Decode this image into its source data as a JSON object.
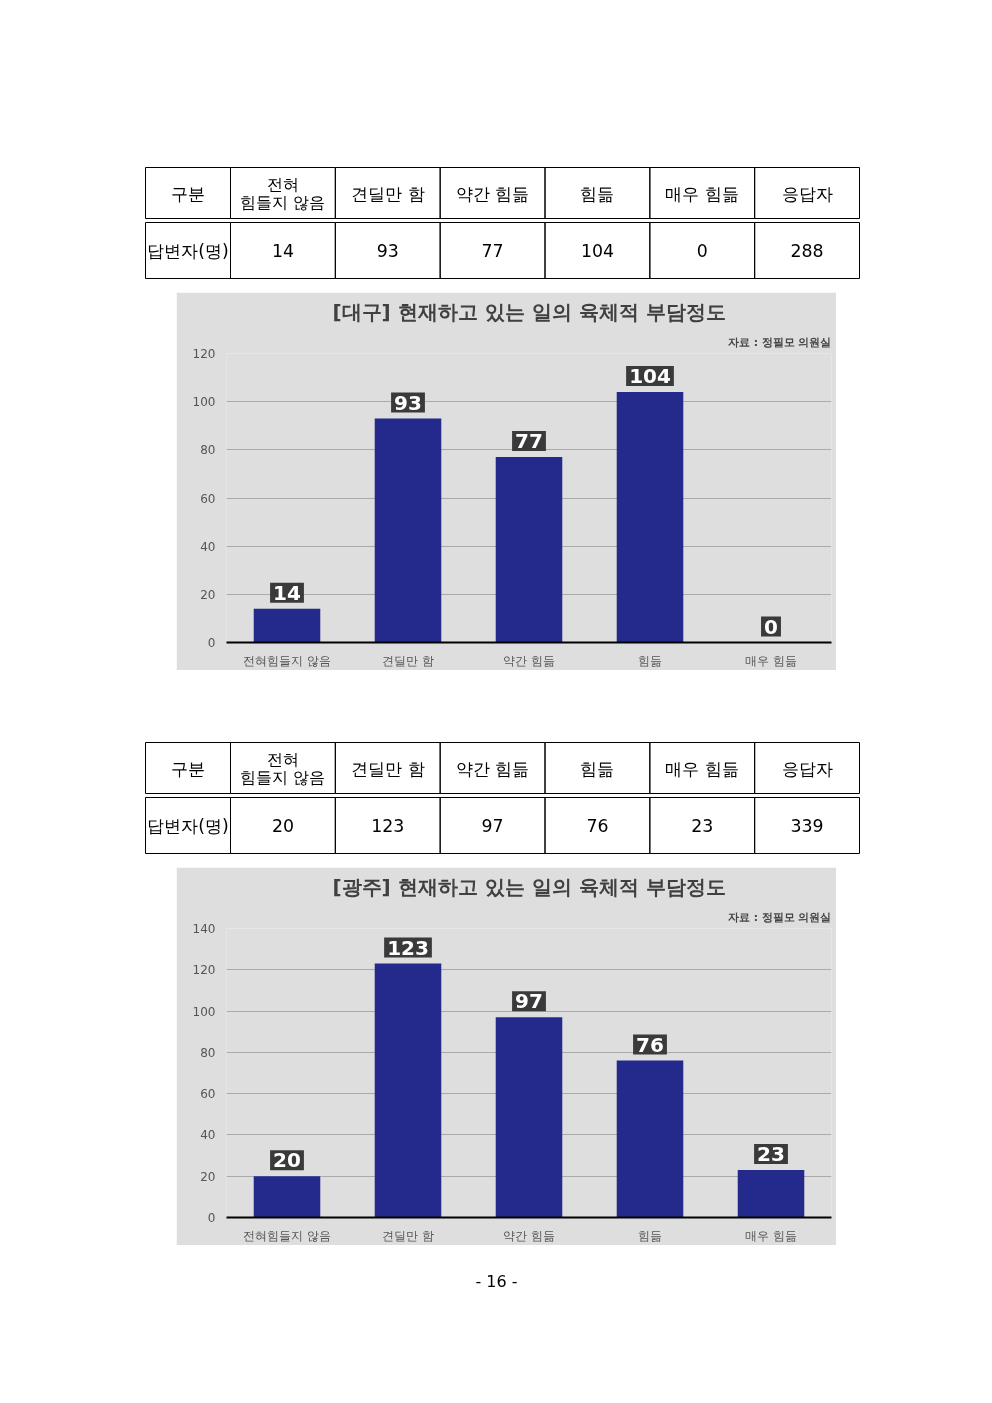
{
  "chart_data": [
    {
      "type": "other",
      "categories": [
        "전혀 힘들지 않음",
        "견딜만 함",
        "약간 힘듦",
        "힘듦",
        "매우 힘듦",
        "응답자"
      ],
      "values": [
        14,
        93,
        77,
        104,
        0,
        288
      ],
      "data_labels": true,
      "annotations": [
        "구분",
        "답변자(명)"
      ]
    },
    {
      "type": "bar",
      "title": "[대구] 현재하고 있는 일의 육체적 부담정도",
      "categories": [
        "전혀힘들지 않음",
        "견딜만 함",
        "약간 힘듦",
        "힘듦",
        "매우 힘듦"
      ],
      "values": [
        14,
        93,
        77,
        104,
        0
      ],
      "color": "#232a8c",
      "ylim": [
        0,
        120
      ],
      "yticks": [
        0,
        20,
        40,
        60,
        80,
        100,
        120
      ],
      "grid": "y",
      "data_labels": true,
      "annotations": [
        "자료 : 정필모 의원실"
      ]
    },
    {
      "type": "other",
      "categories": [
        "전혀 힘들지 않음",
        "견딜만 함",
        "약간 힘듦",
        "힘듦",
        "매우 힘듦",
        "응답자"
      ],
      "values": [
        20,
        123,
        97,
        76,
        23,
        339
      ],
      "data_labels": true,
      "annotations": [
        "구분",
        "답변자(명)"
      ]
    },
    {
      "type": "bar",
      "title": "[광주] 현재하고 있는 일의 육체적 부담정도",
      "categories": [
        "전혀힘들지 않음",
        "견딜만 함",
        "약간 힘듦",
        "힘듦",
        "매우 힘듦"
      ],
      "values": [
        20,
        123,
        97,
        76,
        23
      ],
      "color": "#232a8c",
      "ylim": [
        0,
        140
      ],
      "yticks": [
        0,
        20,
        40,
        60,
        80,
        100,
        120,
        140
      ],
      "grid": "y",
      "data_labels": true,
      "annotations": [
        "자료 : 정필모 의원실",
        "- 16 -"
      ]
    }
  ]
}
